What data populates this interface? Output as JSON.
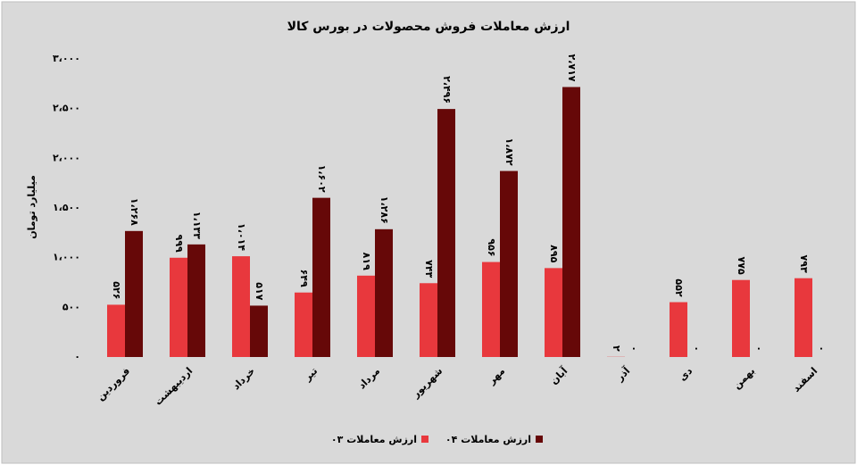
{
  "chart_data": {
    "type": "bar",
    "title": "ارزش معاملات فروش محصولات در بورس کالا",
    "y_label": "میلیارد تومان",
    "categories": [
      "فروردین",
      "اردیبهشت",
      "خرداد",
      "تیر",
      "مرداد",
      "شهریور",
      "مهر",
      "آبان",
      "آذر",
      "دی",
      "بهمن",
      "اسفند"
    ],
    "series": [
      {
        "name": "ارزش معاملات ۰۳",
        "color": "#e8383d",
        "values": [
          526,
          999,
          1014,
          649,
          819,
          743,
          956,
          895,
          2,
          552,
          775,
          793
        ],
        "value_labels": [
          "۵۲۶",
          "۹۹۹",
          "۱،۰۱۴",
          "۶۴۹",
          "۸۱۹",
          "۷۴۳",
          "۹۵۶",
          "۸۹۵",
          "۲",
          "۵۵۲",
          "۷۷۵",
          "۷۹۳"
        ]
      },
      {
        "name": "ارزش معاملات ۰۴",
        "color": "#660808",
        "values": [
          1268,
          1133,
          517,
          1602,
          1286,
          2496,
          1872,
          2717,
          0,
          0,
          0,
          0
        ],
        "value_labels": [
          "۱،۲۶۸",
          "۱،۱۳۳",
          "۵۱۷",
          "۱،۶۰۲",
          "۱،۲۸۶",
          "۲،۴۹۶",
          "۱،۸۷۲",
          "۲،۷۱۷",
          "۰",
          "۰",
          "۰",
          "۰"
        ]
      }
    ],
    "ylim": [
      0,
      3000
    ],
    "yticks": [
      {
        "value": 0,
        "label": "۰"
      },
      {
        "value": 500,
        "label": "۵۰۰"
      },
      {
        "value": 1000,
        "label": "۱،۰۰۰"
      },
      {
        "value": 1500,
        "label": "۱،۵۰۰"
      },
      {
        "value": 2000,
        "label": "۲،۰۰۰"
      },
      {
        "value": 2500,
        "label": "۲،۵۰۰"
      },
      {
        "value": 3000,
        "label": "۳،۰۰۰"
      }
    ],
    "grid": false,
    "legend": "bottom"
  }
}
